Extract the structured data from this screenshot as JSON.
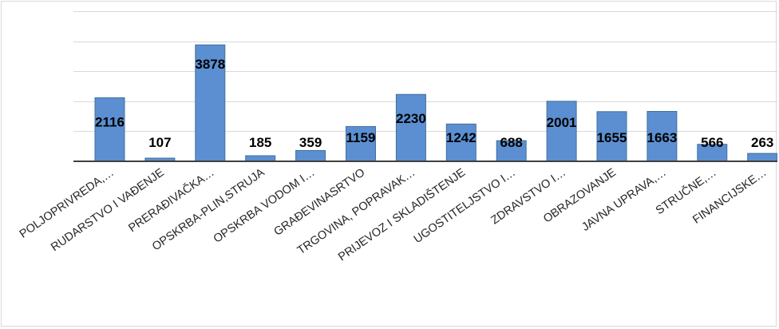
{
  "chart_data": {
    "type": "bar",
    "title": "",
    "xlabel": "",
    "ylabel": "",
    "ylim": [
      0,
      5000
    ],
    "y_tick_step": 1000,
    "grid": true,
    "legend": "none",
    "categories": [
      "POLJOPRIVREDA,…",
      "RUDARSTVO I VAĐENJE",
      "PRERAĐIVAČKA…",
      "OPSKRBA-PLIN,STRUJA",
      "OPSKRBA VODOM I…",
      "GRAĐEVINASRTVO",
      "TRGOVINA, POPRAVAK…",
      "PRIJEVOZ I SKLADIŠTENJE",
      "UGOSTITELJSTVO I…",
      "ZDRAVSTVO I…",
      "OBRAZOVANJE",
      "JAVNA UPRAVA,…",
      "STRUČNE,…",
      "FINANCIJSKE…"
    ],
    "values": [
      2116,
      107,
      3878,
      185,
      359,
      1159,
      2230,
      1242,
      688,
      2001,
      1655,
      1663,
      566,
      263
    ],
    "data_labels": [
      "2116",
      "107",
      "3878",
      "185",
      "359",
      "1159",
      "2230",
      "1242",
      "688",
      "2001",
      "1655",
      "1663",
      "566",
      "263"
    ],
    "colors": {
      "bar_fill": "#5b8fd1",
      "bar_stroke": "#41719c",
      "gridline": "#d9d9d9",
      "axis": "#404040",
      "label_text": "#000000",
      "tick_text": "#262626"
    }
  }
}
